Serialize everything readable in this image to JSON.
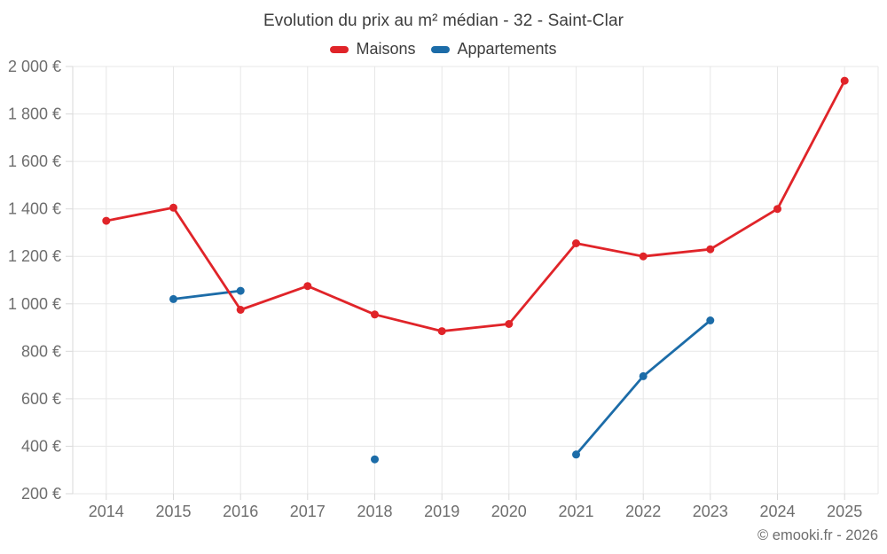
{
  "footer": "© emooki.fr - 2026",
  "chart_data": {
    "type": "line",
    "title": "Evolution du prix au m² médian - 32 - Saint-Clar",
    "categories": [
      "2014",
      "2015",
      "2016",
      "2017",
      "2018",
      "2019",
      "2020",
      "2021",
      "2022",
      "2023",
      "2024",
      "2025"
    ],
    "series": [
      {
        "name": "Maisons",
        "color": "#e02429",
        "values": [
          1350,
          1405,
          975,
          1075,
          955,
          885,
          915,
          1255,
          1200,
          1230,
          1400,
          1940
        ]
      },
      {
        "name": "Appartements",
        "color": "#1c6ca8",
        "values": [
          null,
          1020,
          1055,
          null,
          345,
          null,
          null,
          365,
          695,
          930,
          null,
          null
        ]
      }
    ],
    "ylim": [
      200,
      2000
    ],
    "ytick_values": [
      200,
      400,
      600,
      800,
      1000,
      1200,
      1400,
      1600,
      1800,
      2000
    ],
    "ytick_labels": [
      "200 €",
      "400 €",
      "600 €",
      "800 €",
      "1 000 €",
      "1 200 €",
      "1 400 €",
      "1 600 €",
      "1 800 €",
      "2 000 €"
    ],
    "yunit": "€",
    "xlabel": "",
    "ylabel": "",
    "grid": true,
    "legend_position": "top",
    "span_gaps": false
  }
}
